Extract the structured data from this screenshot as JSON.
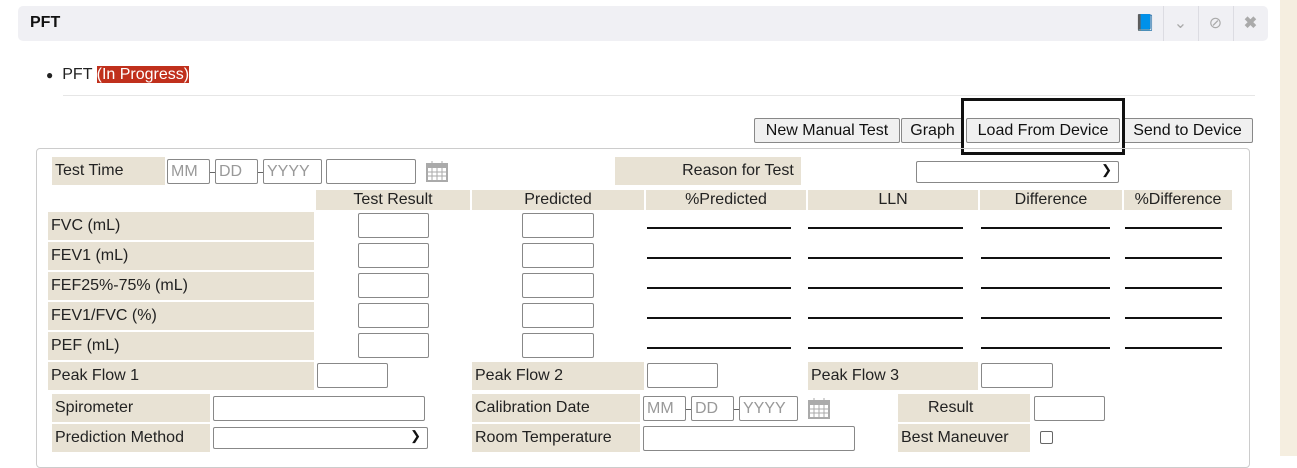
{
  "header": {
    "title": "PFT",
    "icons": [
      "book-icon",
      "chevrons-down-icon",
      "cancel-icon",
      "close-icon"
    ]
  },
  "status": {
    "name": "PFT",
    "state": "(In Progress)",
    "state_bg": "#c0301c"
  },
  "toolbar": {
    "new_manual": "New Manual Test",
    "graph": "Graph",
    "load": "Load From Device",
    "send": "Send to Device"
  },
  "form": {
    "test_time": "Test Time",
    "mm": "MM",
    "dd": "DD",
    "yyyy": "YYYY",
    "reason": "Reason for Test",
    "columns": [
      "Test Result",
      "Predicted",
      "%Predicted",
      "LLN",
      "Difference",
      "%Difference"
    ],
    "rows": [
      "FVC (mL)",
      "FEV1 (mL)",
      "FEF25%-75% (mL)",
      "FEV1/FVC (%)",
      "PEF (mL)"
    ],
    "peak1": "Peak Flow 1",
    "peak2": "Peak Flow 2",
    "peak3": "Peak Flow 3",
    "spirometer": "Spirometer",
    "calibration": "Calibration Date",
    "result": "Result",
    "prediction": "Prediction Method",
    "room_temp": "Room Temperature",
    "best": "Best Maneuver"
  }
}
